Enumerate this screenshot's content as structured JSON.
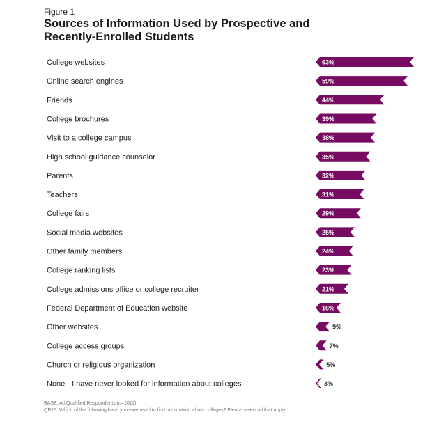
{
  "chart_data": {
    "type": "bar",
    "orientation": "horizontal",
    "figure_label": "Figure 1",
    "title": "Sources of Information Used by Prospective and Recently-Enrolled Students",
    "categories": [
      "College websites",
      "Online search engines",
      "Friends",
      "College brochures",
      "Visit to a college campus",
      "High school guidance counselor",
      "Parents",
      "Teachers",
      "College fairs",
      "Social media websites",
      "Other family members",
      "College ranking lists",
      "College admissions office or college recruiter",
      "Federal Department of Education website",
      "Other websites",
      "College access groups",
      "Church or religious organization",
      "None - I have never looked for information about colleges"
    ],
    "values": [
      63,
      59,
      44,
      39,
      38,
      35,
      32,
      31,
      29,
      25,
      24,
      23,
      21,
      16,
      9,
      7,
      5,
      3
    ],
    "value_labels": [
      "63%",
      "59%",
      "44%",
      "39%",
      "38%",
      "35%",
      "32%",
      "31%",
      "29%",
      "25%",
      "24%",
      "23%",
      "21%",
      "16%",
      "9%",
      "7%",
      "5%",
      "3%"
    ],
    "bar_color": "#770b62",
    "grid": false
  },
  "footnotes": {
    "base": "BASE: All Qualified Respondents (n=1011)",
    "question": "QB25: Which of the following have you ever used to find information about colleges? Please select all that apply."
  }
}
